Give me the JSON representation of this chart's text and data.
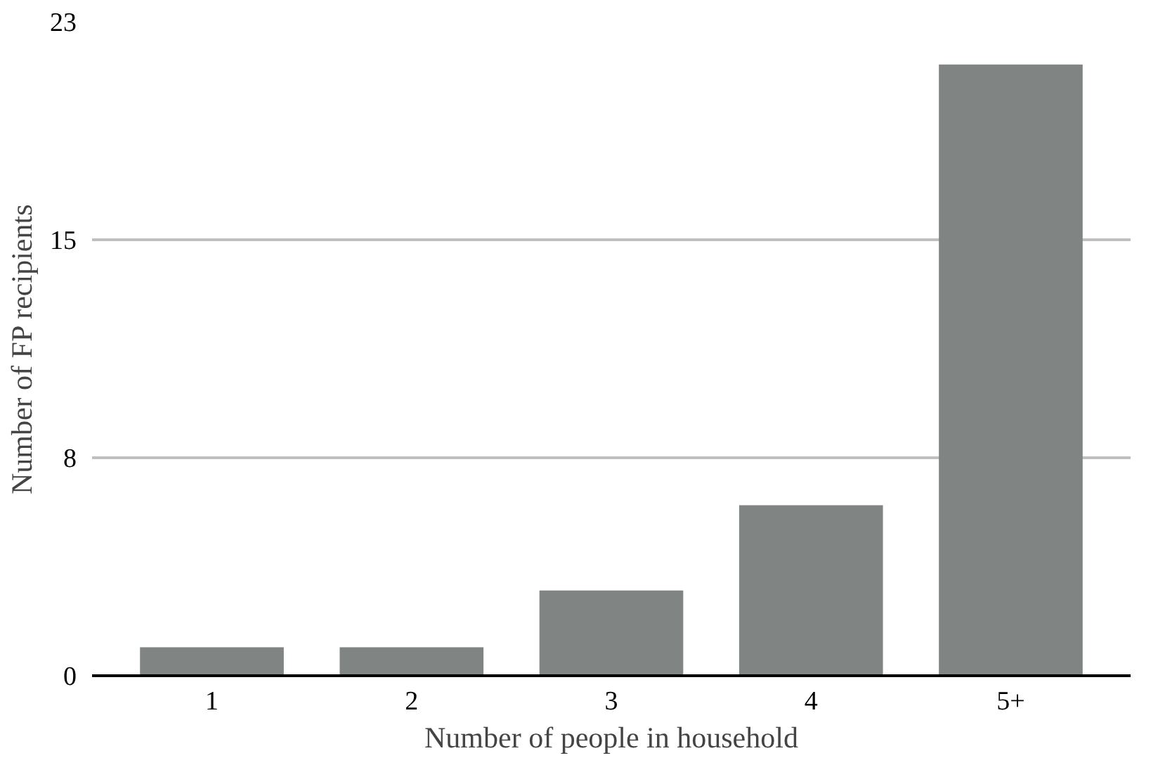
{
  "chart_data": {
    "type": "bar",
    "xlabel": "Number of people in household",
    "ylabel": "Number of FP recipients",
    "categories": [
      "1",
      "2",
      "3",
      "4",
      "5+"
    ],
    "values": [
      1,
      1,
      3,
      6,
      21.5
    ],
    "color": "#808583",
    "ylim": [
      0,
      23
    ],
    "yticks": [
      0,
      {
        "value": 7.667,
        "label": "8"
      },
      {
        "value": 15.333,
        "label": "15"
      },
      23
    ],
    "grid": "y"
  }
}
